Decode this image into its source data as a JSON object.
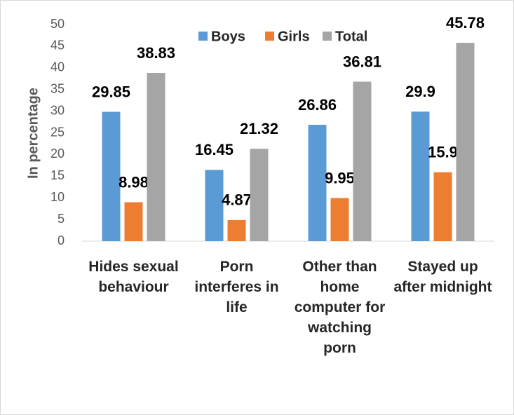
{
  "chart_data": {
    "type": "bar",
    "y_label": "In percentage",
    "categories": [
      "Hides sexual behaviour",
      "Porn interferes in life",
      "Other than home computer for watching porn",
      "Stayed up after midnight"
    ],
    "series": [
      {
        "name": "Boys",
        "color": "#5b9bd5",
        "values": [
          29.85,
          16.45,
          26.86,
          29.9
        ]
      },
      {
        "name": "Girls",
        "color": "#ed7d31",
        "values": [
          8.98,
          4.87,
          9.95,
          15.9
        ]
      },
      {
        "name": "Total",
        "color": "#a5a5a5",
        "values": [
          38.83,
          21.32,
          36.81,
          45.78
        ]
      }
    ],
    "ylim": [
      0,
      50
    ],
    "yticks": [
      0,
      5,
      10,
      15,
      20,
      25,
      30,
      35,
      40,
      45,
      50
    ],
    "legend": "top"
  }
}
